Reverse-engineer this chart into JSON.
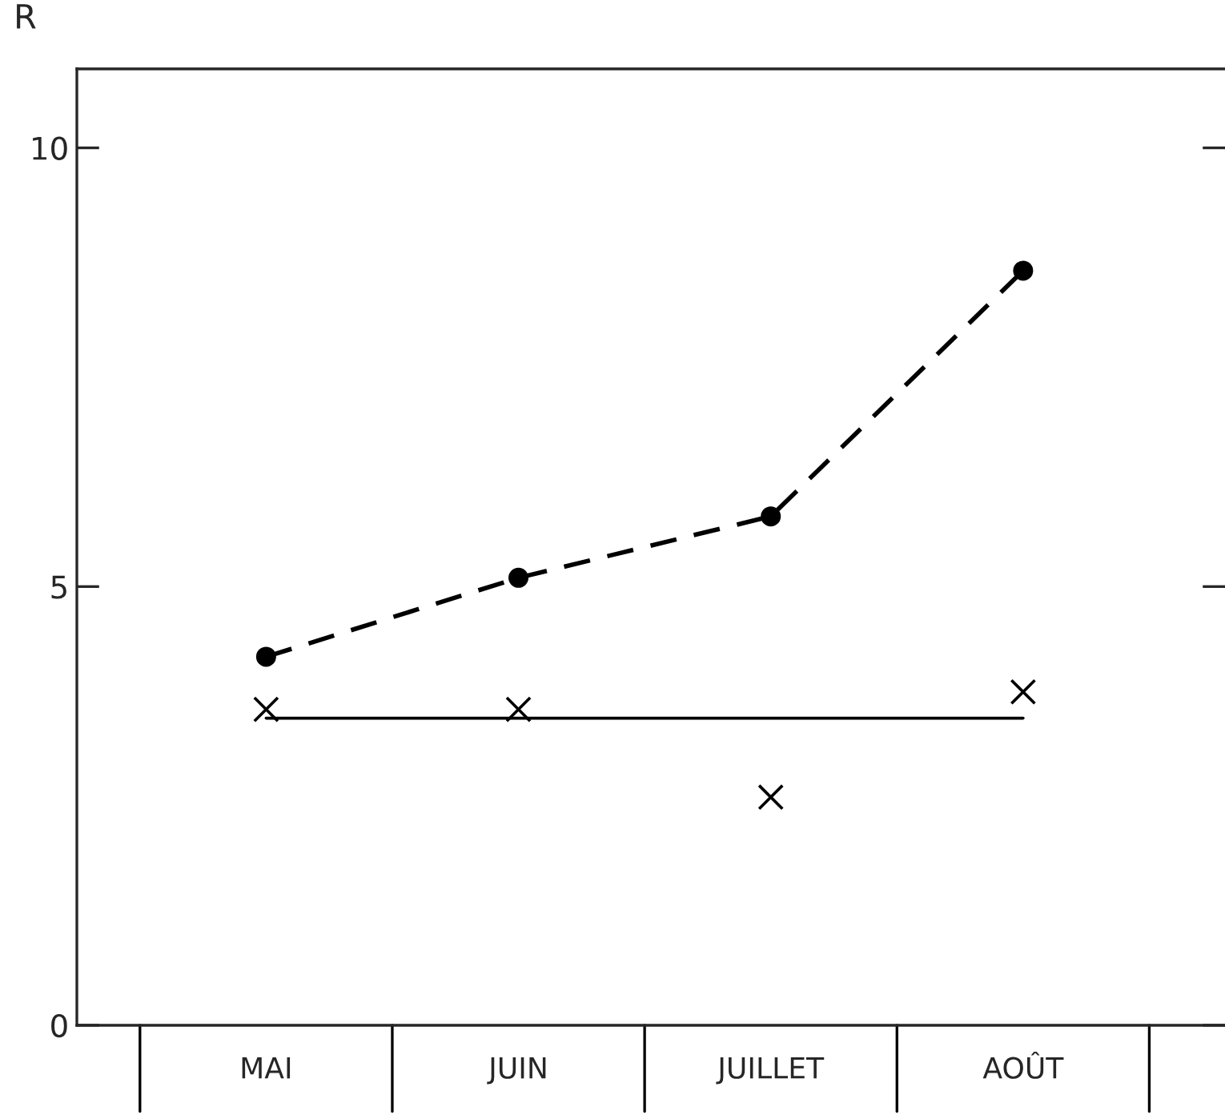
{
  "chart_data": {
    "type": "line",
    "ylabel": "R",
    "categories": [
      "MAI",
      "JUIN",
      "JUILLET",
      "AOÛT"
    ],
    "series": [
      {
        "color": "#000000",
        "values": [
          4.2,
          5.1,
          5.8,
          8.6
        ],
        "marker": "circle",
        "line_style": "dashed"
      },
      {
        "type": "scatter",
        "color": "#000000",
        "values": [
          3.6,
          3.6,
          2.6,
          3.8
        ],
        "marker": "cross"
      },
      {
        "type": "line",
        "color": "#000000",
        "values": [
          3.5,
          3.5,
          3.5,
          3.5
        ],
        "marker": "none",
        "line_style": "solid"
      }
    ],
    "ylim": [
      0,
      10.9
    ],
    "yticks": [
      0,
      5,
      10
    ],
    "grid": false,
    "legend": false
  }
}
